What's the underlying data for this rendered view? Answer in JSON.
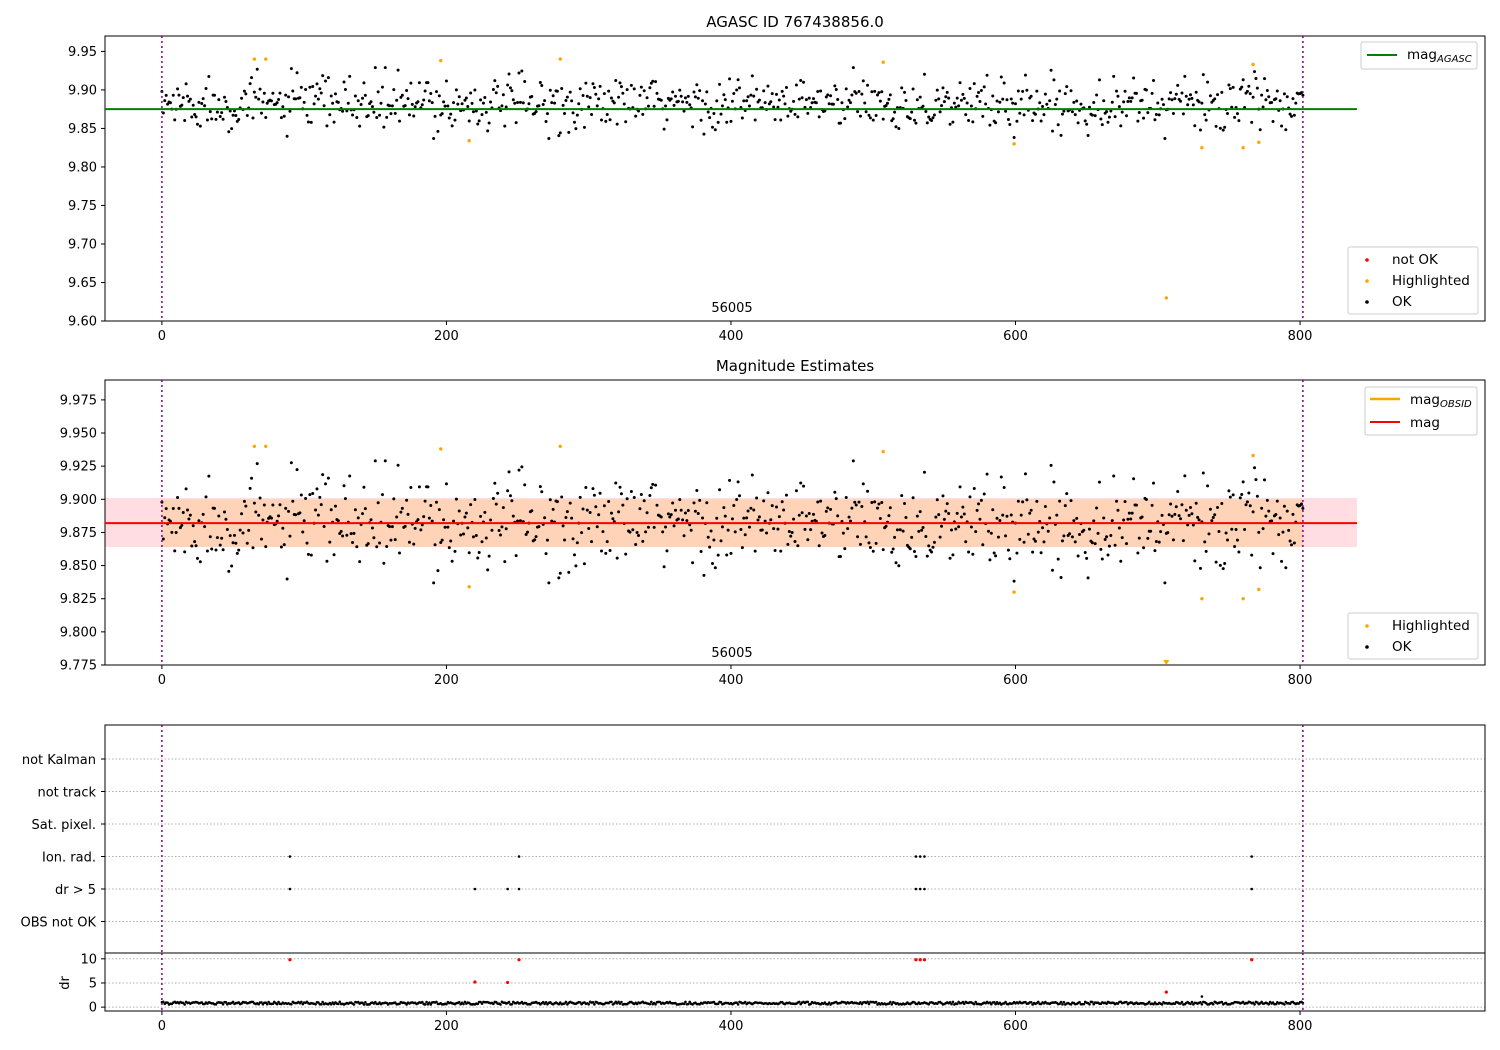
{
  "chart_data": [
    {
      "type": "scatter",
      "title": "AGASC ID 767438856.0",
      "xlim": [
        -40,
        930
      ],
      "ylim": [
        9.6,
        9.97
      ],
      "xticks": [
        0,
        200,
        400,
        600,
        800
      ],
      "yticks": [
        9.6,
        9.65,
        9.7,
        9.75,
        9.8,
        9.85,
        9.9,
        9.95
      ],
      "ytick_labels": [
        "9.60",
        "9.65",
        "9.70",
        "9.75",
        "9.80",
        "9.85",
        "9.90",
        "9.95"
      ],
      "annotation": "56005",
      "vlines": [
        0,
        802
      ],
      "mag_agasc": 9.875,
      "legend_upper": [
        {
          "label": "mag",
          "sub": "AGASC",
          "color": "#008000"
        }
      ],
      "legend_lower": [
        {
          "label": "not OK",
          "color": "#ff0000"
        },
        {
          "label": "Highlighted",
          "color": "#ffa500"
        },
        {
          "label": "OK",
          "color": "#000000"
        }
      ],
      "highlighted": [
        [
          65,
          9.94
        ],
        [
          73,
          9.94
        ],
        [
          196,
          9.938
        ],
        [
          216,
          9.834
        ],
        [
          280,
          9.94
        ],
        [
          507,
          9.936
        ],
        [
          599,
          9.83
        ],
        [
          706,
          9.63
        ],
        [
          731,
          9.825
        ],
        [
          760,
          9.825
        ],
        [
          767,
          9.933
        ],
        [
          771,
          9.832
        ]
      ]
    },
    {
      "type": "scatter",
      "title": "Magnitude Estimates",
      "xlim": [
        -40,
        930
      ],
      "ylim": [
        9.775,
        9.99
      ],
      "xticks": [
        0,
        200,
        400,
        600,
        800
      ],
      "yticks": [
        9.775,
        9.8,
        9.825,
        9.85,
        9.875,
        9.9,
        9.925,
        9.95,
        9.975
      ],
      "ytick_labels": [
        "9.775",
        "9.800",
        "9.825",
        "9.850",
        "9.875",
        "9.900",
        "9.925",
        "9.950",
        "9.975"
      ],
      "annotation": "56005",
      "vlines": [
        0,
        802
      ],
      "mag": 9.882,
      "band_outer": [
        9.864,
        9.901
      ],
      "band_inner": [
        9.864,
        9.9
      ],
      "legend_upper": [
        {
          "label": "mag",
          "sub": "OBSID",
          "color": "#ffa500"
        },
        {
          "label": "mag",
          "sub": "",
          "color": "#ff0000"
        }
      ],
      "legend_lower": [
        {
          "label": "Highlighted",
          "color": "#ffa500"
        },
        {
          "label": "OK",
          "color": "#000000"
        }
      ],
      "highlighted": [
        [
          65,
          9.94
        ],
        [
          73,
          9.94
        ],
        [
          196,
          9.938
        ],
        [
          216,
          9.834
        ],
        [
          280,
          9.94
        ],
        [
          507,
          9.936
        ],
        [
          599,
          9.83
        ],
        [
          731,
          9.825
        ],
        [
          760,
          9.825
        ],
        [
          767,
          9.933
        ],
        [
          771,
          9.832
        ]
      ],
      "out_of_range_markers": [
        706
      ]
    },
    {
      "type": "scatter",
      "title": "",
      "xlim": [
        -40,
        930
      ],
      "vlines": [
        0,
        802
      ],
      "flag_rows": [
        "not Kalman",
        "not track",
        "Sat. pixel.",
        "Ion. rad.",
        "dr > 5",
        "OBS not OK"
      ],
      "flag_points": {
        "Ion. rad.": [
          90,
          251,
          530,
          533,
          536,
          766
        ],
        "dr > 5": [
          90,
          220,
          243,
          251,
          530,
          533,
          536,
          766
        ]
      }
    },
    {
      "type": "scatter",
      "title": "",
      "ylabel": "dr",
      "xlim": [
        -40,
        930
      ],
      "ylim": [
        -0.8,
        11.2
      ],
      "xticks": [
        0,
        200,
        400,
        600,
        800
      ],
      "yticks": [
        0,
        5,
        10
      ],
      "vlines": [
        0,
        802
      ],
      "red_points": [
        [
          90,
          9.8
        ],
        [
          220,
          5.2
        ],
        [
          243,
          5.1
        ],
        [
          251,
          9.8
        ],
        [
          530,
          9.8
        ],
        [
          533,
          9.8
        ],
        [
          536,
          9.8
        ],
        [
          706,
          3.1
        ],
        [
          766,
          9.8
        ]
      ],
      "black_peak": [
        [
          731,
          2.2
        ]
      ]
    }
  ]
}
